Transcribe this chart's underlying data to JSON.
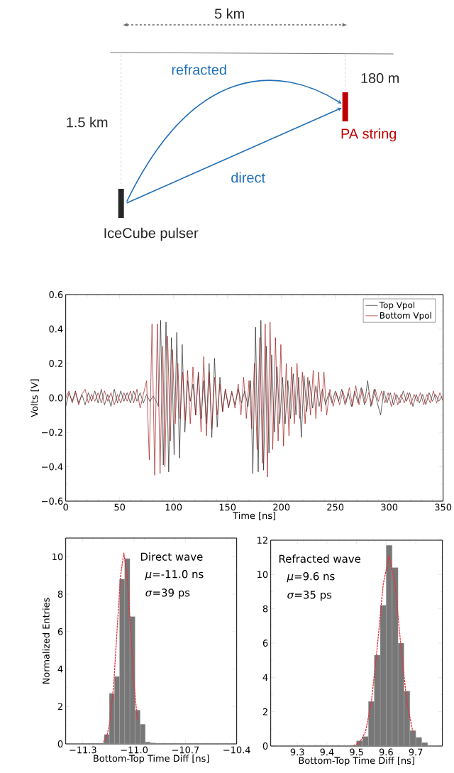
{
  "chart_data": [
    {
      "type": "other",
      "annotations": [
        "5 km",
        "refracted",
        "180 m",
        "1.5 km",
        "PA string",
        "direct",
        "IceCube pulser"
      ]
    },
    {
      "type": "line",
      "xlabel": "Time [ns]",
      "ylabel": "Volts [V]",
      "xlim": [
        0,
        350
      ],
      "ylim": [
        -0.6,
        0.6
      ],
      "xticks": [
        0,
        50,
        100,
        150,
        200,
        250,
        300,
        350
      ],
      "yticks": [
        {
          "value": -0.6,
          "label": "−0.6"
        },
        {
          "value": -0.4,
          "label": "−0.4"
        },
        {
          "value": -0.2,
          "label": "−0.2"
        },
        {
          "value": 0,
          "label": "0.0"
        },
        {
          "value": 0.2,
          "label": "0.2"
        },
        {
          "value": 0.4,
          "label": "0.4"
        },
        {
          "value": 0.6,
          "label": "0.6"
        }
      ],
      "legend": "top right",
      "grid": false,
      "marker": "none",
      "line_style": "solid",
      "series": [
        {
          "name": "Top Vpol",
          "color": "#222222",
          "x": [
            0,
            3,
            6,
            9,
            12,
            15,
            18,
            21,
            24,
            27,
            30,
            33,
            36,
            39,
            42,
            45,
            48,
            51,
            54,
            57,
            60,
            63,
            66,
            69,
            72,
            75,
            78,
            81,
            84,
            86,
            88,
            90.5,
            93,
            95.5,
            98,
            100.5,
            103,
            105.5,
            108,
            110.5,
            113,
            115.5,
            118,
            120.5,
            123,
            125.5,
            128,
            130.5,
            133,
            135.5,
            138,
            140.5,
            143,
            145.5,
            148,
            151,
            154,
            157,
            160,
            163,
            166,
            169,
            171.5,
            173.5,
            176,
            178.5,
            181,
            183.5,
            186,
            188.5,
            191,
            193.5,
            196,
            198.5,
            201,
            203.5,
            206,
            208.5,
            211,
            213.5,
            216,
            218.5,
            221,
            223.5,
            226,
            229,
            232,
            235,
            238,
            241,
            244,
            247,
            250,
            253,
            256,
            259,
            262,
            265,
            268,
            271,
            274,
            277,
            280,
            283,
            286,
            289,
            292,
            295,
            298,
            301,
            304,
            307,
            310,
            313,
            316,
            319,
            322,
            325,
            328,
            331,
            334,
            337,
            340,
            343,
            346,
            349
          ],
          "values": [
            -0.05,
            0.03,
            -0.02,
            0.04,
            -0.03,
            0.02,
            -0.04,
            0.03,
            -0.02,
            0.04,
            -0.03,
            0.05,
            -0.04,
            0.02,
            -0.05,
            0.05,
            -0.03,
            0.04,
            -0.02,
            0.03,
            -0.03,
            0.04,
            -0.02,
            0.03,
            -0.03,
            0.02,
            -0.02,
            0.01,
            -0.02,
            -0.05,
            0.45,
            -0.39,
            0.44,
            -0.43,
            0.35,
            -0.33,
            0.38,
            -0.35,
            0.31,
            -0.2,
            0.1,
            -0.02,
            0.08,
            -0.1,
            0.15,
            -0.12,
            0.1,
            -0.15,
            0.2,
            -0.23,
            0.23,
            -0.17,
            0.12,
            -0.08,
            0.05,
            -0.06,
            0.03,
            -0.04,
            0.05,
            -0.03,
            0.04,
            -0.05,
            0.1,
            -0.44,
            0.41,
            -0.43,
            0.45,
            -0.42,
            0.3,
            -0.32,
            0.25,
            -0.2,
            0.18,
            -0.15,
            0.12,
            -0.15,
            0.1,
            -0.12,
            0.14,
            -0.1,
            0.12,
            -0.23,
            0.13,
            -0.08,
            0.1,
            -0.06,
            0.07,
            -0.05,
            0.05,
            -0.04,
            0.03,
            -0.03,
            0.04,
            -0.02,
            0.05,
            -0.04,
            0.03,
            -0.05,
            0.04,
            -0.03,
            0.06,
            -0.04,
            0.1,
            -0.05,
            0.05,
            -0.03,
            -0.1,
            0.04,
            -0.03,
            0.03,
            -0.04,
            0.02,
            -0.03,
            0.04,
            -0.02,
            0.03,
            -0.05,
            0.02,
            -0.03,
            0.02,
            -0.04,
            0.03,
            -0.02,
            0.02,
            -0.02,
            0.01
          ]
        },
        {
          "name": "Bottom Vpol",
          "color": "#a01818",
          "x": [
            0,
            3,
            6,
            9,
            12,
            15,
            18,
            21,
            24,
            27,
            30,
            33,
            36,
            39,
            42,
            45,
            48,
            51,
            54,
            57,
            60,
            63,
            66,
            69,
            72,
            75,
            77.5,
            80,
            82.5,
            85,
            87.5,
            90,
            92,
            94.5,
            97,
            99,
            101.5,
            104,
            106,
            108.5,
            111,
            113,
            115.5,
            118,
            120.5,
            123,
            125.5,
            128,
            130.5,
            133,
            135.5,
            138,
            140.5,
            143,
            145.5,
            148,
            151,
            154,
            157,
            160,
            162.5,
            165,
            167.5,
            170,
            172.5,
            175,
            177.5,
            180,
            182.5,
            185,
            187,
            189.5,
            192,
            194.5,
            197,
            199.5,
            202,
            204.5,
            207,
            209.5,
            212,
            214.5,
            217,
            219.5,
            222,
            224.5,
            227,
            229.5,
            232,
            234.5,
            237,
            239.5,
            242,
            245,
            248,
            251,
            254,
            257,
            260,
            263,
            266,
            269,
            272,
            275,
            278,
            281,
            284,
            287,
            290,
            293,
            296,
            299,
            302,
            305,
            308,
            311,
            314,
            317,
            320,
            323,
            326,
            329,
            332,
            335,
            338,
            341,
            344,
            347,
            350
          ],
          "values": [
            0.0,
            0.04,
            -0.03,
            0.03,
            -0.04,
            0.02,
            0.05,
            -0.03,
            0.02,
            -0.02,
            0.03,
            -0.03,
            0.04,
            -0.02,
            0.03,
            -0.04,
            0.02,
            -0.03,
            0.03,
            -0.02,
            0.04,
            -0.03,
            0.05,
            -0.06,
            0.02,
            0.1,
            -0.36,
            0.43,
            -0.45,
            0.43,
            -0.44,
            0.3,
            -0.4,
            0.36,
            -0.25,
            0.28,
            -0.15,
            0.2,
            -0.12,
            0.15,
            -0.13,
            0.16,
            -0.15,
            0.18,
            -0.1,
            0.14,
            -0.2,
            0.24,
            -0.22,
            0.15,
            -0.18,
            0.12,
            -0.1,
            0.08,
            -0.08,
            0.05,
            -0.05,
            0.04,
            -0.06,
            0.08,
            -0.1,
            0.12,
            -0.12,
            0.1,
            -0.18,
            0.2,
            -0.3,
            0.35,
            -0.38,
            0.43,
            -0.46,
            0.44,
            -0.3,
            0.35,
            -0.25,
            0.31,
            -0.28,
            0.2,
            -0.22,
            0.18,
            -0.15,
            0.2,
            -0.12,
            0.15,
            -0.15,
            0.12,
            -0.1,
            0.16,
            -0.12,
            0.15,
            -0.08,
            0.15,
            -0.1,
            0.05,
            -0.05,
            0.03,
            -0.04,
            0.04,
            -0.03,
            0.06,
            -0.05,
            0.07,
            -0.04,
            0.05,
            -0.03,
            0.03,
            -0.04,
            0.05,
            -0.02,
            0.04,
            -0.03,
            0.03,
            -0.05,
            0.03,
            -0.04,
            0.02,
            -0.03,
            0.03,
            -0.04,
            0.02,
            -0.02,
            0.03,
            -0.04,
            0.02,
            -0.03,
            0.04,
            -0.03,
            0.03,
            -0.02
          ]
        }
      ]
    },
    {
      "type": "histogram",
      "xlabel": "Bottom-Top Time Diff [ns]",
      "ylabel": "Normalized Entries",
      "xlim": [
        -11.4,
        -10.4
      ],
      "ylim": [
        0,
        11
      ],
      "xticks": [
        {
          "value": -11.3,
          "label": "−11.3"
        },
        {
          "value": -11.0,
          "label": "−11.0"
        },
        {
          "value": -10.7,
          "label": "−10.7"
        },
        {
          "value": -10.4,
          "label": "−10.4"
        }
      ],
      "yticks": [
        0,
        2,
        4,
        6,
        8,
        10
      ],
      "bins": [
        -11.175,
        -11.145,
        -11.115,
        -11.085,
        -11.055,
        -11.025,
        -10.995,
        -10.965,
        -10.935,
        -10.905,
        -10.875
      ],
      "values": [
        0.5,
        2.7,
        3.6,
        8.8,
        9.9,
        6.8,
        1.8,
        1.05,
        0.1,
        0.05
      ],
      "color": "#777777",
      "annotations": [
        "Direct wave",
        "*μ*=-11.0 ns",
        "*σ*=39 ps"
      ],
      "series": [
        {
          "type": "line",
          "line_style": "dashed",
          "color": "#e8303a",
          "x": [
            -11.18,
            -11.16,
            -11.14,
            -11.12,
            -11.1,
            -11.08,
            -11.06,
            -11.04,
            -11.02,
            -11.0,
            -10.98
          ],
          "values": [
            0.09,
            0.38,
            1.25,
            3.13,
            6.03,
            8.94,
            10.2,
            8.94,
            6.03,
            3.13,
            1.25
          ]
        }
      ]
    },
    {
      "type": "histogram",
      "xlabel": "Bottom-Top Time Diff [ns]",
      "xlim": [
        9.21,
        9.79
      ],
      "ylim": [
        0,
        12
      ],
      "xticks": [
        9.3,
        9.4,
        9.5,
        9.6,
        9.7
      ],
      "yticks": [
        0,
        2,
        4,
        6,
        8,
        10,
        12
      ],
      "bins": [
        9.5,
        9.52,
        9.54,
        9.56,
        9.58,
        9.6,
        9.62,
        9.64,
        9.66,
        9.68,
        9.7,
        9.72,
        9.74
      ],
      "values": [
        0.3,
        0.55,
        2.6,
        5.3,
        8.2,
        11.7,
        10.4,
        6.0,
        3.2,
        0.9,
        0.5,
        0.2
      ],
      "color": "#777777",
      "annotations": [
        "Refracted wave",
        "*μ*=9.6 ns",
        "*σ*=35 ps"
      ],
      "series": [
        {
          "type": "line",
          "line_style": "dashed",
          "color": "#e8303a",
          "x": [
            9.49,
            9.51,
            9.53,
            9.55,
            9.57,
            9.59,
            9.61,
            9.63,
            9.65,
            9.67,
            9.69
          ],
          "values": [
            0.03,
            0.19,
            0.82,
            2.55,
            5.78,
            9.43,
            11.1,
            9.43,
            5.78,
            2.55,
            0.82
          ]
        }
      ]
    }
  ]
}
